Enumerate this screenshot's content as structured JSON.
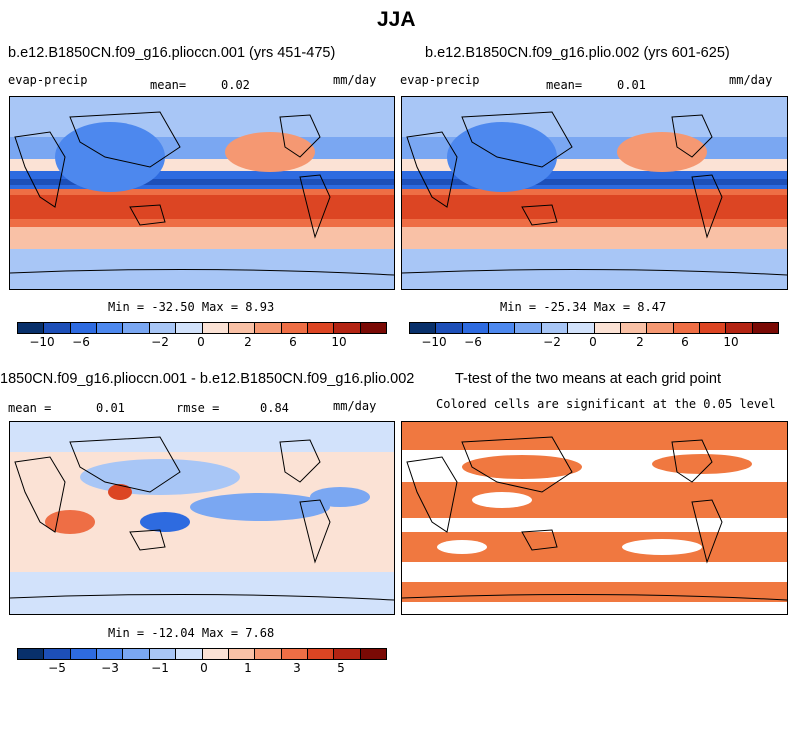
{
  "figure_title": "JJA",
  "panels": [
    {
      "title": "b.e12.B1850CN.f09_g16.plioccn.001 (yrs 451-475)",
      "left_label": "evap-precip",
      "mean_label": "mean=",
      "mean_value": "0.02",
      "units": "mm/day",
      "stats": "Min = -32.50  Max =   8.93",
      "colorbar_ticks": [
        "−10",
        "−6",
        "−2",
        "0",
        "2",
        "6",
        "10"
      ]
    },
    {
      "title": "b.e12.B1850CN.f09_g16.plio.002 (yrs 601-625)",
      "left_label": "evap-precip",
      "mean_label": "mean=",
      "mean_value": "0.01",
      "units": "mm/day",
      "stats": "Min = -25.34  Max =   8.47",
      "colorbar_ticks": [
        "−10",
        "−6",
        "−2",
        "0",
        "2",
        "6",
        "10"
      ]
    },
    {
      "title": "1850CN.f09_g16.plioccn.001 - b.e12.B1850CN.f09_g16.plio.002",
      "mean_label": "mean =",
      "mean_value": "0.01",
      "rmse_label": "rmse =",
      "rmse_value": "0.84",
      "units": "mm/day",
      "stats": "Min = -12.04  Max =   7.68",
      "colorbar_ticks": [
        "−5",
        "−3",
        "−1",
        "0",
        "1",
        "3",
        "5"
      ]
    },
    {
      "title": "T-test of the two means at each grid point",
      "subtitle": "Colored cells are significant at the 0.05 level"
    }
  ],
  "colors": {
    "palette": [
      "#08306b",
      "#1d4fb8",
      "#2e6be0",
      "#4d88ee",
      "#7aa7f2",
      "#a8c6f6",
      "#d2e2fb",
      "#fbe2d5",
      "#f9c1a6",
      "#f59872",
      "#ee6e45",
      "#dc4523",
      "#b32413",
      "#7a0a05"
    ],
    "sig_orange": "#f07840",
    "land_outline": "#000000"
  }
}
